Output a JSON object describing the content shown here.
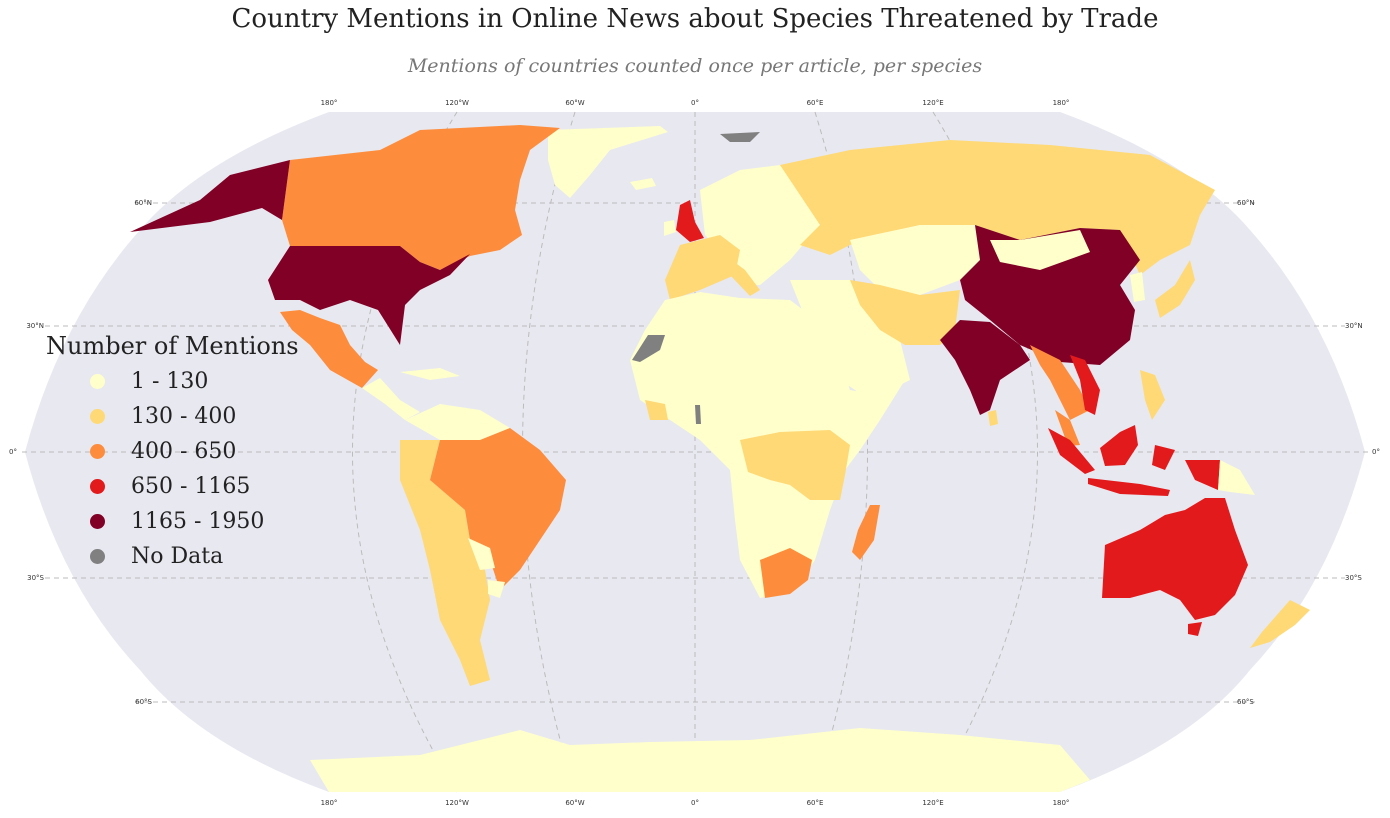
{
  "title": "Country Mentions in Online News about Species Threatened by Trade",
  "subtitle": "Mentions of countries counted once per article, per species",
  "legend": {
    "title": "Number of Mentions",
    "items": [
      {
        "label": "1 - 130",
        "color": "#ffffcc"
      },
      {
        "label": "130 - 400",
        "color": "#fed976"
      },
      {
        "label": "400 - 650",
        "color": "#fd8d3c"
      },
      {
        "label": "650 - 1165",
        "color": "#e31a1c"
      },
      {
        "label": "1165 - 1950",
        "color": "#800026"
      },
      {
        "label": "No Data",
        "color": "#808080"
      }
    ]
  },
  "graticule": {
    "lon_labels": [
      "180°",
      "120°W",
      "60°W",
      "0°",
      "60°E",
      "120°E",
      "180°"
    ],
    "lat_labels": [
      "60°N",
      "30°N",
      "0°",
      "30°S",
      "60°S"
    ]
  },
  "colors": {
    "ocean": "#e8e8f0",
    "gridline": "#bbbbbb"
  },
  "chart_data": {
    "type": "choropleth",
    "projection": "Robinson",
    "grid": true,
    "legend_placement": "left",
    "categories": [
      "1 - 130",
      "130 - 400",
      "400 - 650",
      "650 - 1165",
      "1165 - 1950",
      "No Data"
    ],
    "regions": [
      {
        "name": "United States",
        "bin": "1165 - 1950"
      },
      {
        "name": "Alaska",
        "bin": "1165 - 1950"
      },
      {
        "name": "China",
        "bin": "1165 - 1950"
      },
      {
        "name": "India",
        "bin": "1165 - 1950"
      },
      {
        "name": "United Kingdom",
        "bin": "650 - 1165"
      },
      {
        "name": "Indonesia",
        "bin": "650 - 1165"
      },
      {
        "name": "Australia",
        "bin": "650 - 1165"
      },
      {
        "name": "Vietnam",
        "bin": "650 - 1165"
      },
      {
        "name": "Canada",
        "bin": "400 - 650"
      },
      {
        "name": "Mexico",
        "bin": "400 - 650"
      },
      {
        "name": "Brazil",
        "bin": "400 - 650"
      },
      {
        "name": "South Africa",
        "bin": "400 - 650"
      },
      {
        "name": "Madagascar",
        "bin": "400 - 650"
      },
      {
        "name": "Thailand",
        "bin": "400 - 650"
      },
      {
        "name": "Russia",
        "bin": "130 - 400"
      },
      {
        "name": "France",
        "bin": "130 - 400"
      },
      {
        "name": "Iran",
        "bin": "130 - 400"
      },
      {
        "name": "Japan",
        "bin": "130 - 400"
      },
      {
        "name": "Kenya/Tanzania",
        "bin": "130 - 400"
      },
      {
        "name": "Andean South America",
        "bin": "130 - 400"
      },
      {
        "name": "New Zealand",
        "bin": "130 - 400"
      },
      {
        "name": "Greenland",
        "bin": "1 - 130"
      },
      {
        "name": "Africa (other)",
        "bin": "1 - 130"
      },
      {
        "name": "Central Asia",
        "bin": "1 - 130"
      },
      {
        "name": "Antarctica",
        "bin": "1 - 130"
      },
      {
        "name": "Western Sahara",
        "bin": "No Data"
      }
    ]
  }
}
